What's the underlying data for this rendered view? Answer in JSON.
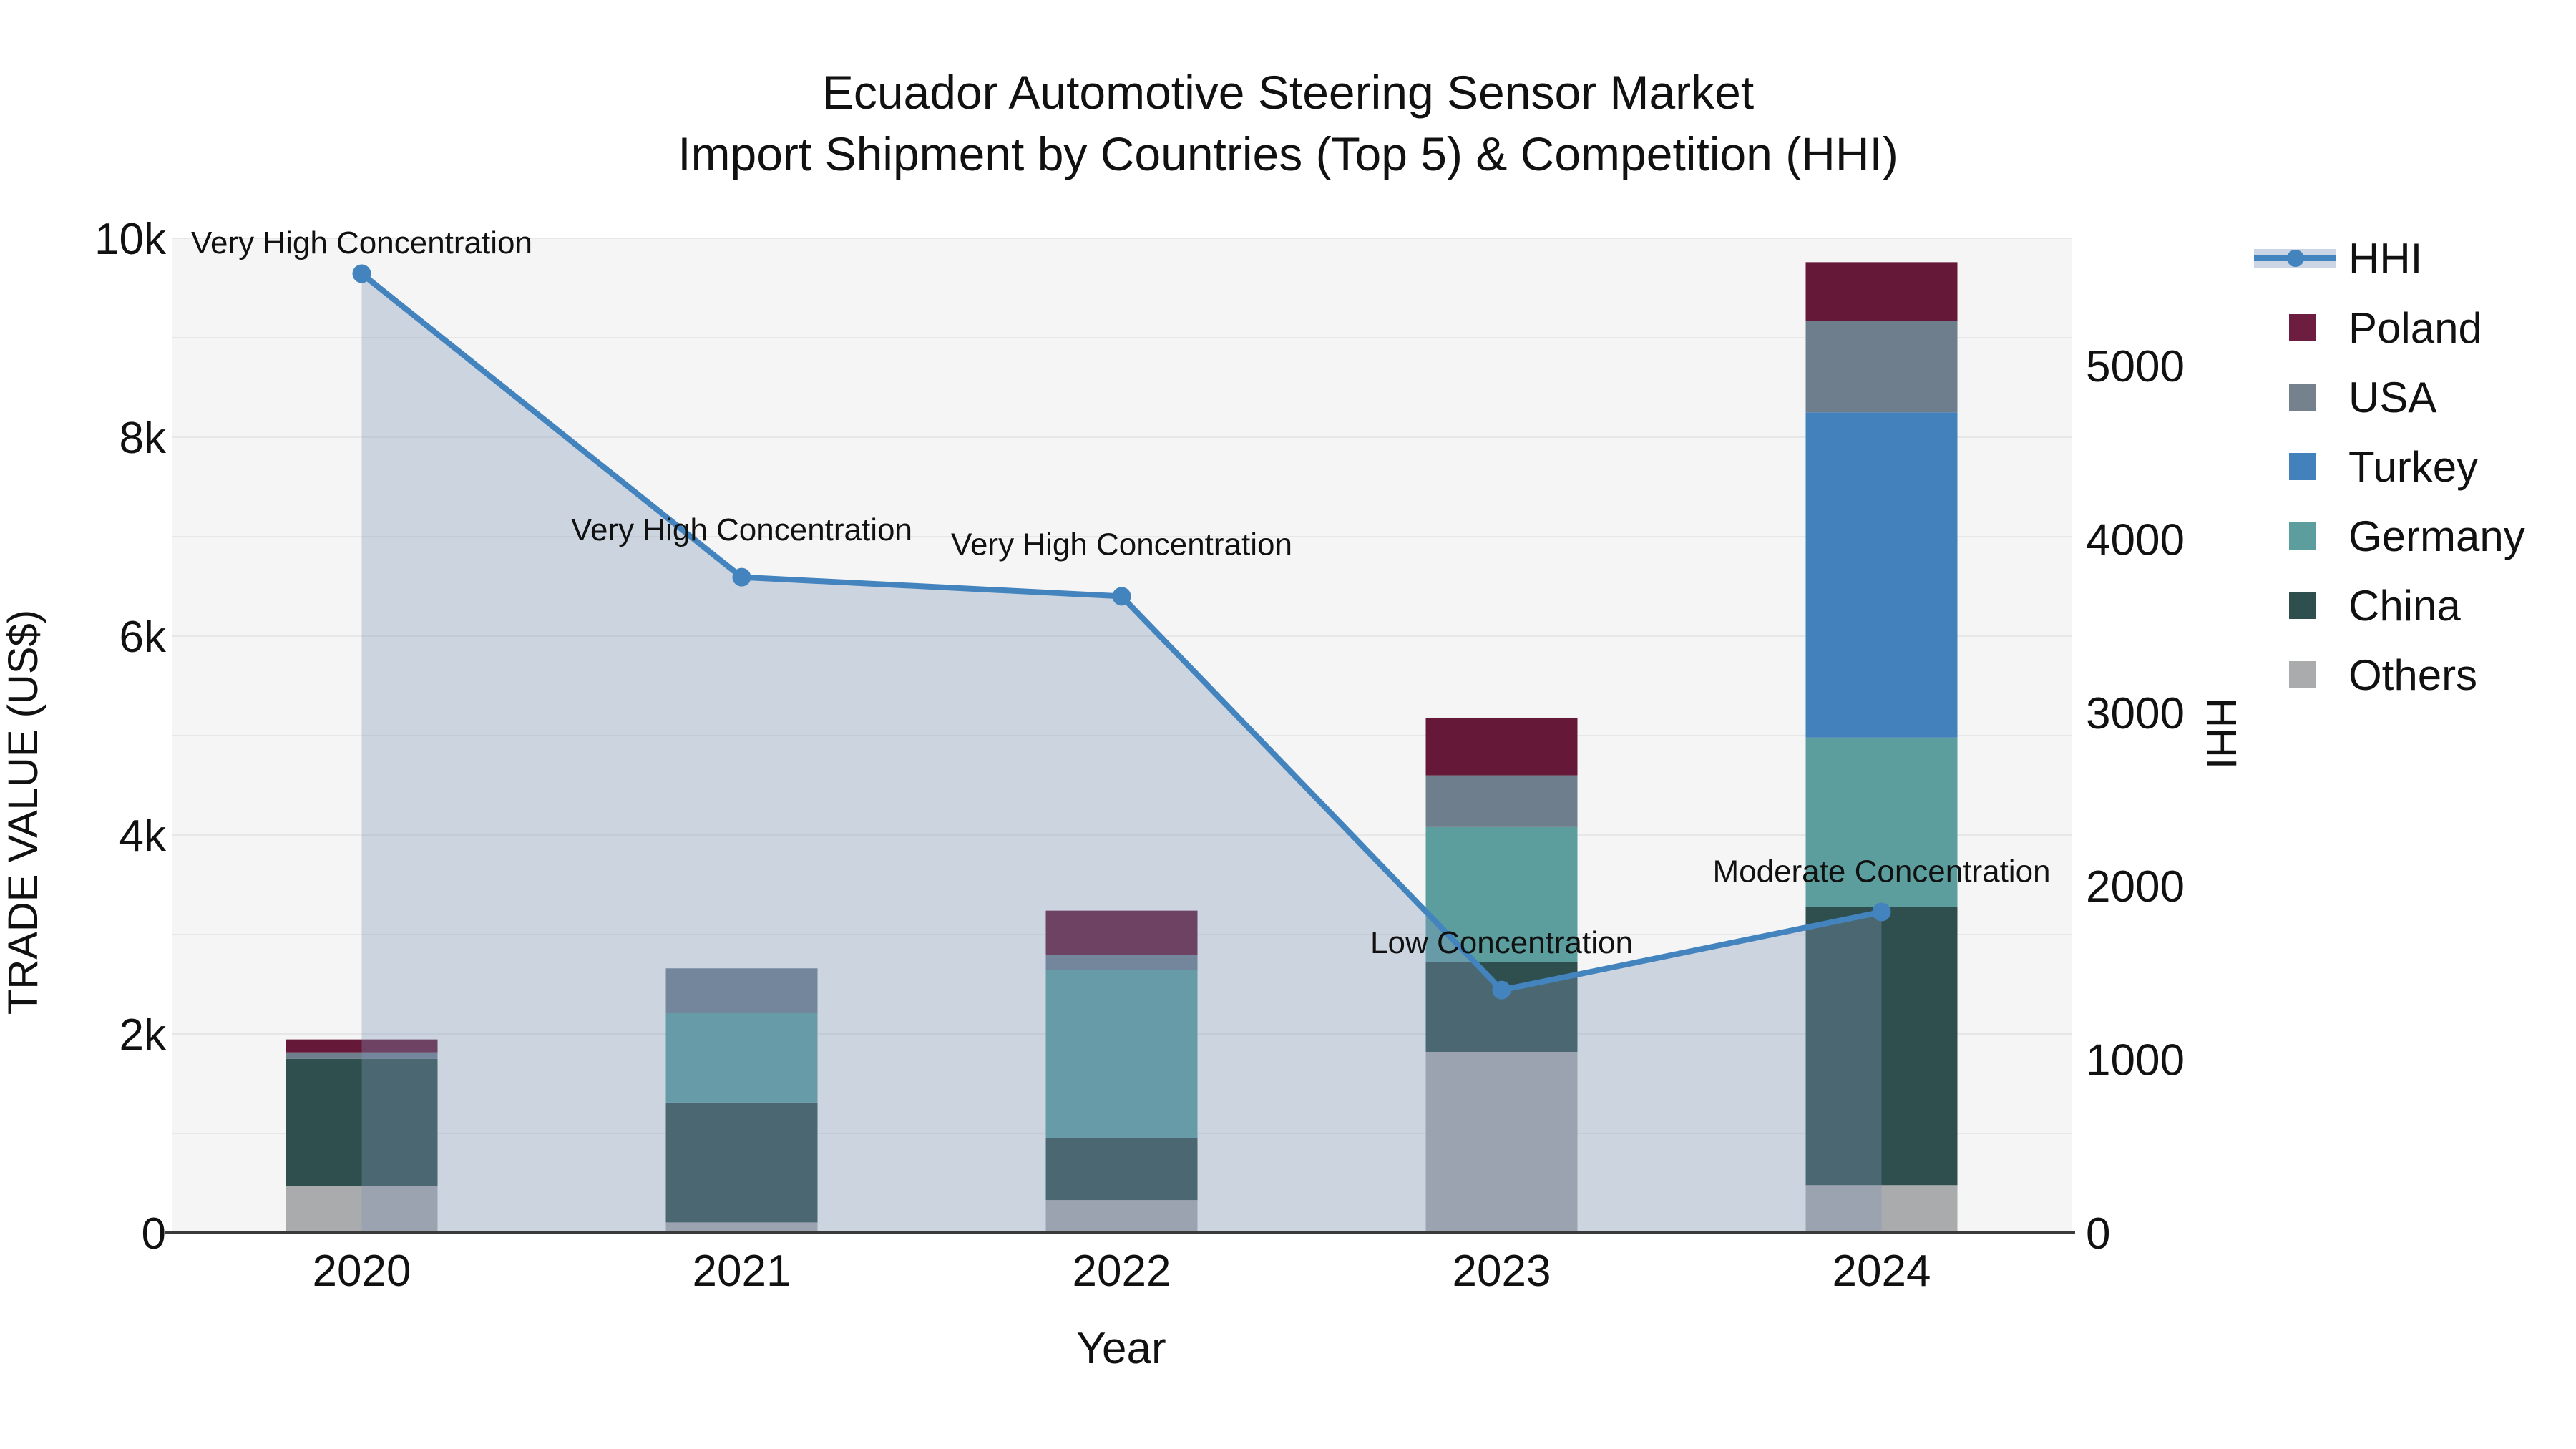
{
  "title": {
    "line1": "Ecuador Automotive Steering Sensor Market",
    "line2": "Import Shipment by Countries (Top 5) & Competition (HHI)"
  },
  "legend": {
    "position": "right-outside",
    "items": [
      {
        "label": "HHI",
        "type": "line",
        "color": "#4384be"
      },
      {
        "label": "Poland",
        "type": "swatch",
        "color": "#6d1d40"
      },
      {
        "label": "USA",
        "type": "swatch",
        "color": "#75828e"
      },
      {
        "label": "Turkey",
        "type": "swatch",
        "color": "#4281bb"
      },
      {
        "label": "Germany",
        "type": "swatch",
        "color": "#5c9e9e"
      },
      {
        "label": "China",
        "type": "swatch",
        "color": "#2f4f4e"
      },
      {
        "label": "Others",
        "type": "swatch",
        "color": "#aaabad"
      }
    ]
  },
  "chart_data": {
    "type": "bar",
    "subtype": "stacked-bars-with-line-overlay-and-area",
    "title": "Ecuador Automotive Steering Sensor Market — Import Shipment by Countries (Top 5) & Competition (HHI)",
    "categories": [
      "2020",
      "2021",
      "2022",
      "2023",
      "2024"
    ],
    "series": [
      {
        "name": "Others",
        "color": "#aaabad",
        "values": [
          470,
          105,
          330,
          1820,
          480
        ]
      },
      {
        "name": "China",
        "color": "#2f4f4e",
        "values": [
          1280,
          1205,
          620,
          900,
          2800
        ]
      },
      {
        "name": "Germany",
        "color": "#5c9e9e",
        "values": [
          0,
          900,
          1695,
          1360,
          1700
        ]
      },
      {
        "name": "Turkey",
        "color": "#4281bb",
        "values": [
          0,
          0,
          0,
          0,
          3270
        ]
      },
      {
        "name": "USA",
        "color": "#6e7e8d",
        "values": [
          65,
          450,
          150,
          520,
          920
        ]
      },
      {
        "name": "Poland",
        "color": "#651838",
        "values": [
          130,
          0,
          445,
          580,
          590
        ]
      }
    ],
    "bar_totals": [
      1945,
      2660,
      3240,
      5180,
      9760
    ],
    "hhi_line": {
      "name": "HHI",
      "values": [
        5530,
        3780,
        3670,
        1400,
        1850
      ],
      "color": "#4384be",
      "area_fill": "rgba(125,150,185,0.34)",
      "marker": "circle"
    },
    "annotations": [
      {
        "text": "Very High Concentration",
        "category": "2020",
        "y_hhi": 5710
      },
      {
        "text": "Very High Concentration",
        "category": "2021",
        "y_hhi": 4055
      },
      {
        "text": "Very High Concentration",
        "category": "2022",
        "y_hhi": 3970
      },
      {
        "text": "Low Concentration",
        "category": "2023",
        "y_hhi": 1675
      },
      {
        "text": "Moderate Concentration",
        "category": "2024",
        "y_hhi": 2085
      }
    ],
    "xlabel": "Year",
    "ylabel_left": "TRADE VALUE (US$)",
    "ylabel_right": "HHI",
    "yticks_left_labels": [
      "0",
      "2k",
      "4k",
      "6k",
      "8k",
      "10k"
    ],
    "yticks_left_values": [
      0,
      2000,
      4000,
      6000,
      8000,
      10000
    ],
    "yticks_right_labels": [
      "0",
      "1000",
      "2000",
      "3000",
      "4000",
      "5000"
    ],
    "yticks_right_values": [
      0,
      1000,
      2000,
      3000,
      4000,
      5000
    ],
    "ylim_left": [
      0,
      10000
    ],
    "ylim_right": [
      0,
      5734
    ],
    "grid": "horizontal minor gridlines every 1000 (left axis)",
    "plot_bg": "#f5f5f5",
    "gridline_color": "#e7e7e7",
    "axisline_color": "#3a3a3a"
  }
}
